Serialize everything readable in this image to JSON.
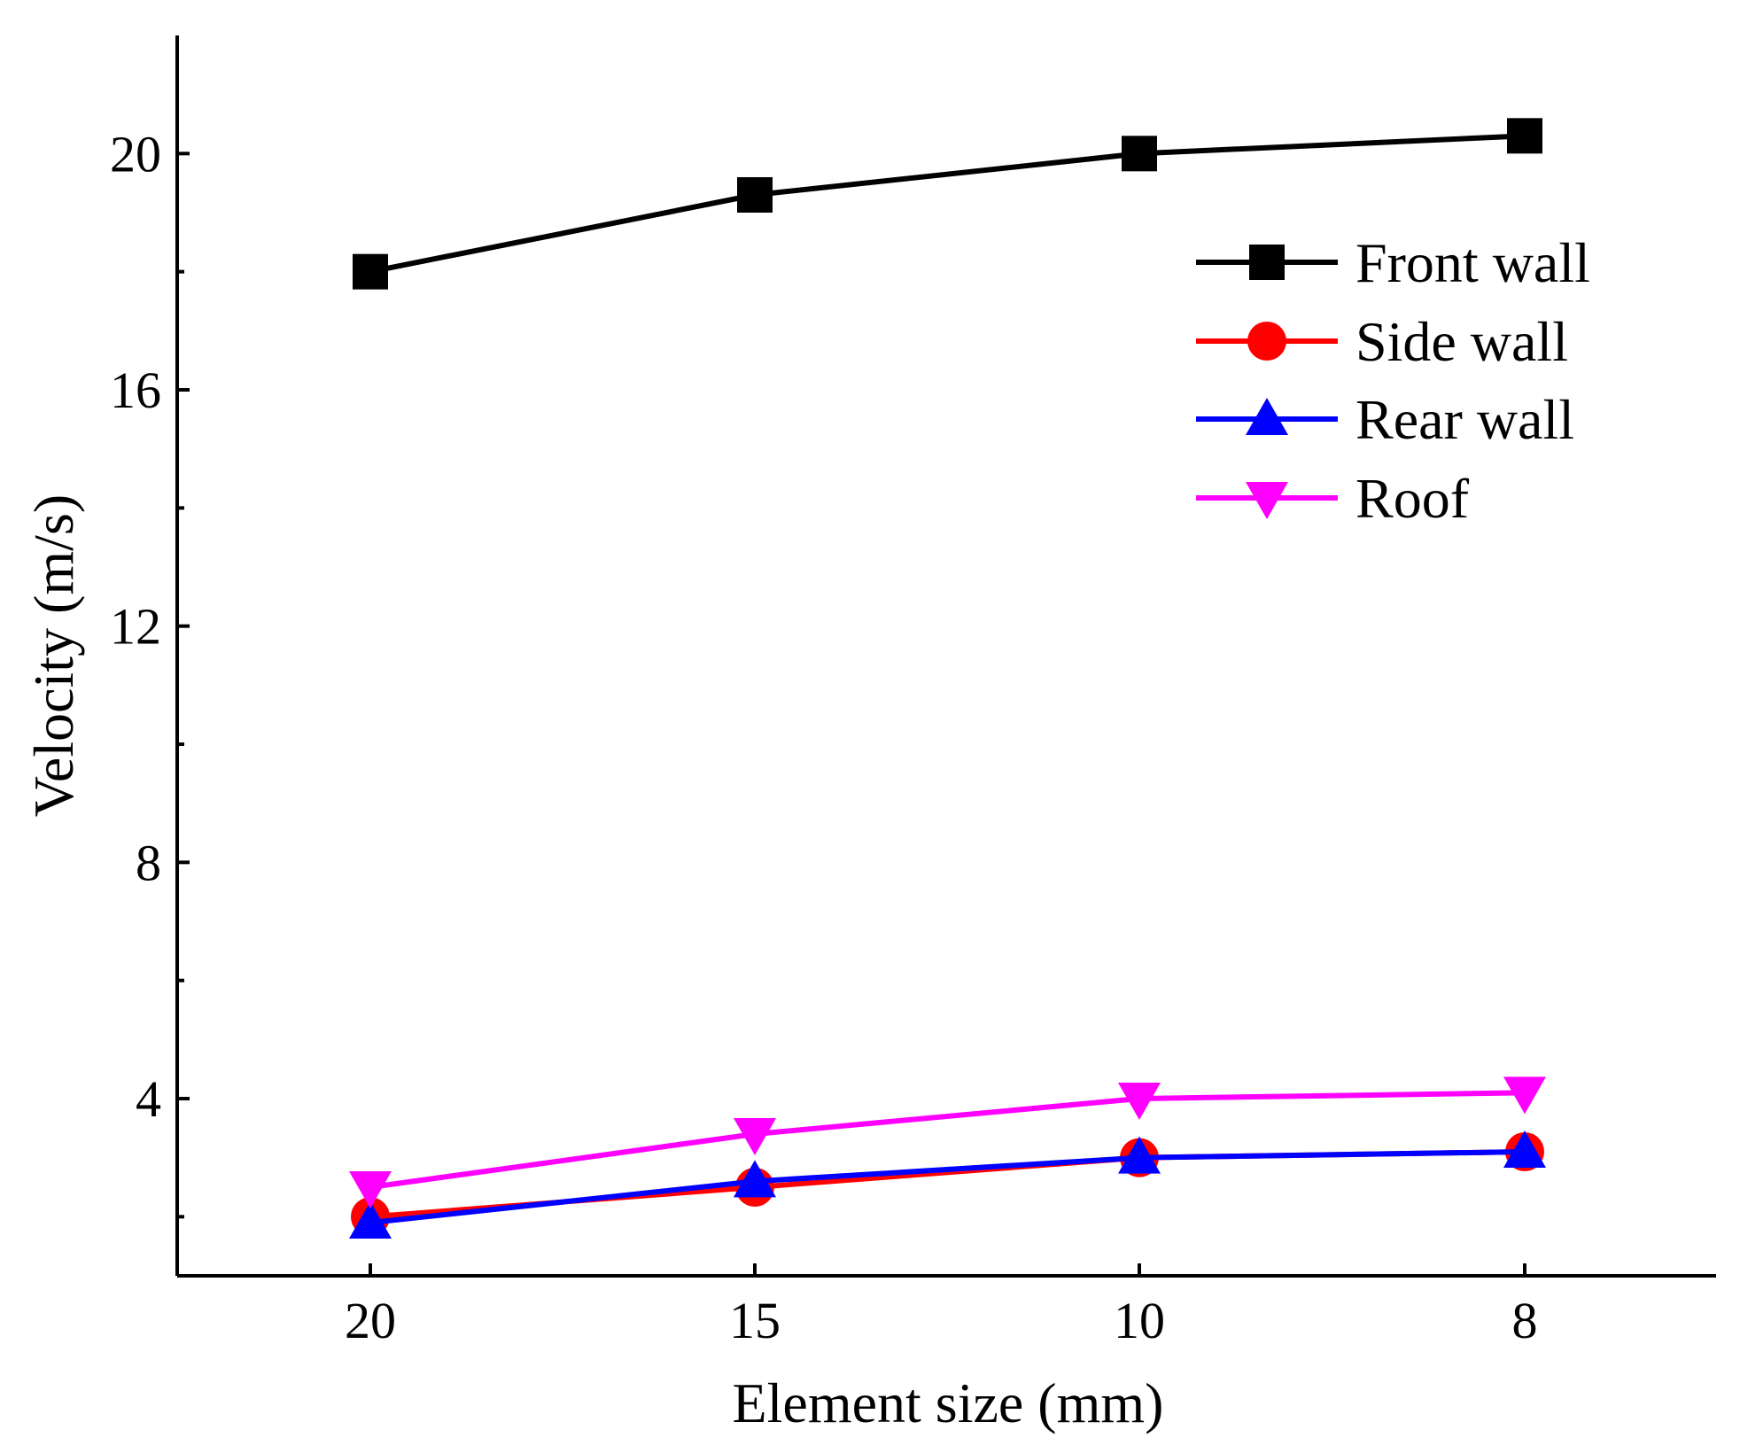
{
  "chart_data": {
    "type": "line",
    "title": "",
    "xlabel": "Element size (mm)",
    "ylabel": "Velocity (m/s)",
    "categories": [
      "20",
      "15",
      "10",
      "8"
    ],
    "ylim": [
      1.0,
      22.0
    ],
    "yticks_major": [
      4,
      8,
      12,
      16,
      20
    ],
    "yticks_minor": [
      2,
      6,
      10,
      14,
      18
    ],
    "grid": false,
    "legend_position": "top-right",
    "series": [
      {
        "name": "Front wall",
        "marker": "square",
        "color": "#000000",
        "values": [
          18.0,
          19.3,
          20.0,
          20.3
        ]
      },
      {
        "name": "Side wall",
        "marker": "circle",
        "color": "#ff0000",
        "values": [
          2.0,
          2.5,
          3.0,
          3.1
        ]
      },
      {
        "name": "Rear wall",
        "marker": "triangle-up",
        "color": "#0000ff",
        "values": [
          1.9,
          2.6,
          3.0,
          3.1
        ]
      },
      {
        "name": "Roof",
        "marker": "triangle-down",
        "color": "#ff00ff",
        "values": [
          2.5,
          3.4,
          4.0,
          4.1
        ]
      }
    ]
  }
}
